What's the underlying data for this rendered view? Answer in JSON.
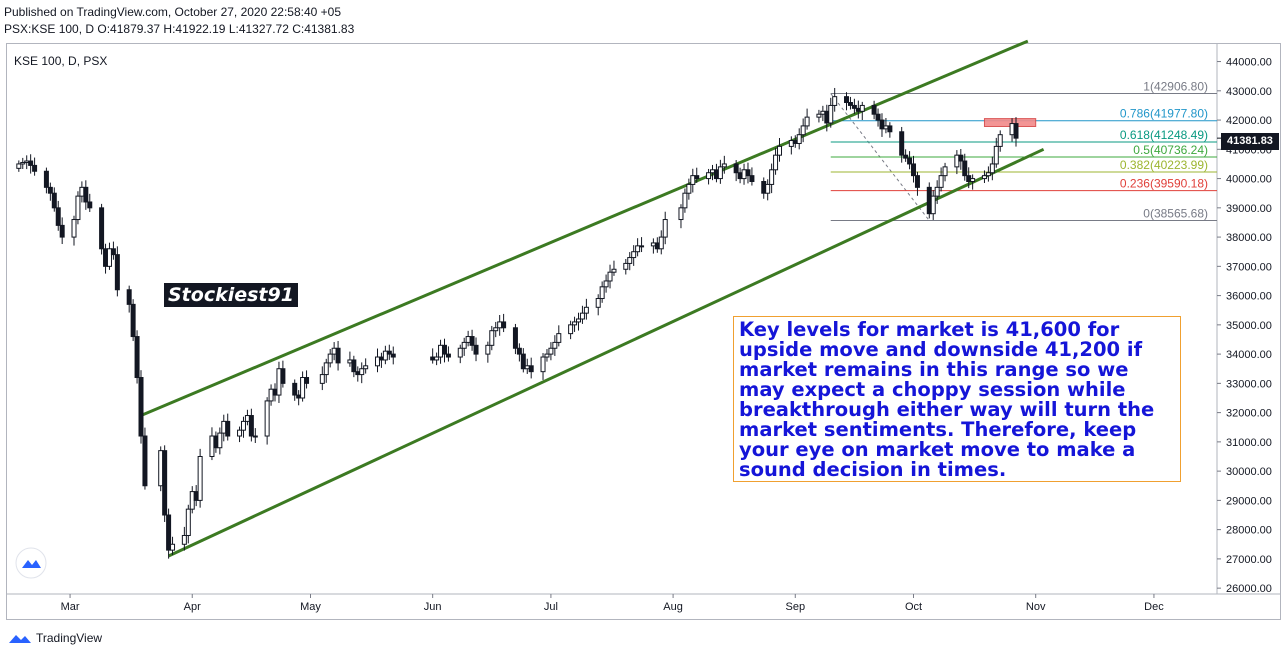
{
  "header": {
    "published_line": "Published on TradingView.com, October 27, 2020 22:58:40 +05",
    "ohlc_line": "PSX:KSE 100, D  O:41879.37 H:41922.19 L:41327.72 C:41381.83"
  },
  "footer": {
    "brand": "TradingView"
  },
  "watermark": "Stockiest91",
  "annotation": "Key levels for market is 41,600 for upside move and downside 41,200 if market remains in this range so we may expect a choppy session while breakthrough either way will turn the market sentiments. Therefore, keep your eye on market move to make a sound decision in times.",
  "last_price_label": "41381.83",
  "chart_data": {
    "type": "candlestick",
    "title": "KSE 100, D, PSX",
    "symbol": "PSX:KSE 100",
    "interval": "D",
    "ylim": [
      25800,
      44600
    ],
    "y_ticks": [
      26000,
      27000,
      28000,
      29000,
      30000,
      31000,
      32000,
      33000,
      34000,
      35000,
      36000,
      37000,
      38000,
      39000,
      40000,
      41000,
      42000,
      43000,
      44000
    ],
    "y_tick_labels": [
      "26000.00",
      "27000.00",
      "28000.00",
      "29000.00",
      "30000.00",
      "31000.00",
      "32000.00",
      "33000.00",
      "34000.00",
      "35000.00",
      "36000.00",
      "37000.00",
      "38000.00",
      "39000.00",
      "40000.00",
      "41000.00",
      "42000.00",
      "43000.00",
      "44000.00"
    ],
    "x_ticks": [
      {
        "label": "Mar",
        "date": "2020-03-01"
      },
      {
        "label": "Apr",
        "date": "2020-04-01"
      },
      {
        "label": "May",
        "date": "2020-05-01"
      },
      {
        "label": "Jun",
        "date": "2020-06-01"
      },
      {
        "label": "Jul",
        "date": "2020-07-01"
      },
      {
        "label": "Aug",
        "date": "2020-08-01"
      },
      {
        "label": "Sep",
        "date": "2020-09-01"
      },
      {
        "label": "Oct",
        "date": "2020-10-01"
      },
      {
        "label": "Nov",
        "date": "2020-11-01"
      },
      {
        "label": "Dec",
        "date": "2020-12-01"
      }
    ],
    "close_series": [
      [
        "2020-02-17",
        40500
      ],
      [
        "2020-02-18",
        40550
      ],
      [
        "2020-02-19",
        40600
      ],
      [
        "2020-02-20",
        40450
      ],
      [
        "2020-02-21",
        40250
      ],
      [
        "2020-02-24",
        39700
      ],
      [
        "2020-02-25",
        39500
      ],
      [
        "2020-02-26",
        39000
      ],
      [
        "2020-02-27",
        38400
      ],
      [
        "2020-02-28",
        38000
      ],
      [
        "2020-03-02",
        38600
      ],
      [
        "2020-03-03",
        39400
      ],
      [
        "2020-03-04",
        39700
      ],
      [
        "2020-03-05",
        39200
      ],
      [
        "2020-03-06",
        39000
      ],
      [
        "2020-03-09",
        37600
      ],
      [
        "2020-03-10",
        37000
      ],
      [
        "2020-03-11",
        37600
      ],
      [
        "2020-03-12",
        37400
      ],
      [
        "2020-03-13",
        36200
      ],
      [
        "2020-03-16",
        35700
      ],
      [
        "2020-03-17",
        34600
      ],
      [
        "2020-03-18",
        33200
      ],
      [
        "2020-03-19",
        31200
      ],
      [
        "2020-03-20",
        29500
      ],
      [
        "2020-03-24",
        30700
      ],
      [
        "2020-03-25",
        28500
      ],
      [
        "2020-03-26",
        27300
      ],
      [
        "2020-03-27",
        27500
      ],
      [
        "2020-03-30",
        27800
      ],
      [
        "2020-03-31",
        28700
      ],
      [
        "2020-04-01",
        29300
      ],
      [
        "2020-04-02",
        29000
      ],
      [
        "2020-04-03",
        30500
      ],
      [
        "2020-04-06",
        31200
      ],
      [
        "2020-04-07",
        30800
      ],
      [
        "2020-04-08",
        31300
      ],
      [
        "2020-04-09",
        31700
      ],
      [
        "2020-04-10",
        31200
      ],
      [
        "2020-04-13",
        31400
      ],
      [
        "2020-04-14",
        31700
      ],
      [
        "2020-04-15",
        31900
      ],
      [
        "2020-04-16",
        31200
      ],
      [
        "2020-04-17",
        31200
      ],
      [
        "2020-04-20",
        32400
      ],
      [
        "2020-04-21",
        32800
      ],
      [
        "2020-04-22",
        32600
      ],
      [
        "2020-04-23",
        33500
      ],
      [
        "2020-04-24",
        33000
      ],
      [
        "2020-04-27",
        32600
      ],
      [
        "2020-04-28",
        32500
      ],
      [
        "2020-04-29",
        33200
      ],
      [
        "2020-04-30",
        33000
      ],
      [
        "2020-05-04",
        33300
      ],
      [
        "2020-05-05",
        33700
      ],
      [
        "2020-05-06",
        34000
      ],
      [
        "2020-05-07",
        34200
      ],
      [
        "2020-05-08",
        33700
      ],
      [
        "2020-05-11",
        33800
      ],
      [
        "2020-05-12",
        33400
      ],
      [
        "2020-05-13",
        33300
      ],
      [
        "2020-05-14",
        33500
      ],
      [
        "2020-05-15",
        33600
      ],
      [
        "2020-05-18",
        33900
      ],
      [
        "2020-05-19",
        33800
      ],
      [
        "2020-05-20",
        34100
      ],
      [
        "2020-05-21",
        34000
      ],
      [
        "2020-05-22",
        33900
      ],
      [
        "2020-06-01",
        33800
      ],
      [
        "2020-06-02",
        33900
      ],
      [
        "2020-06-03",
        34300
      ],
      [
        "2020-06-04",
        34000
      ],
      [
        "2020-06-05",
        33900
      ],
      [
        "2020-06-08",
        34200
      ],
      [
        "2020-06-09",
        34400
      ],
      [
        "2020-06-10",
        34600
      ],
      [
        "2020-06-11",
        34300
      ],
      [
        "2020-06-12",
        34000
      ],
      [
        "2020-06-15",
        34300
      ],
      [
        "2020-06-16",
        34800
      ],
      [
        "2020-06-17",
        34900
      ],
      [
        "2020-06-18",
        35100
      ],
      [
        "2020-06-19",
        34900
      ],
      [
        "2020-06-22",
        34200
      ],
      [
        "2020-06-23",
        34000
      ],
      [
        "2020-06-24",
        33500
      ],
      [
        "2020-06-25",
        33600
      ],
      [
        "2020-06-26",
        33400
      ],
      [
        "2020-06-29",
        33900
      ],
      [
        "2020-06-30",
        34000
      ],
      [
        "2020-07-01",
        34200
      ],
      [
        "2020-07-02",
        34400
      ],
      [
        "2020-07-03",
        34700
      ],
      [
        "2020-07-06",
        35000
      ],
      [
        "2020-07-07",
        35100
      ],
      [
        "2020-07-08",
        35200
      ],
      [
        "2020-07-09",
        35400
      ],
      [
        "2020-07-10",
        35600
      ],
      [
        "2020-07-13",
        35900
      ],
      [
        "2020-07-14",
        36300
      ],
      [
        "2020-07-15",
        36500
      ],
      [
        "2020-07-16",
        36800
      ],
      [
        "2020-07-17",
        36900
      ],
      [
        "2020-07-20",
        37100
      ],
      [
        "2020-07-21",
        37300
      ],
      [
        "2020-07-22",
        37500
      ],
      [
        "2020-07-23",
        37700
      ],
      [
        "2020-07-24",
        37700
      ],
      [
        "2020-07-27",
        37800
      ],
      [
        "2020-07-28",
        37600
      ],
      [
        "2020-07-29",
        38000
      ],
      [
        "2020-07-30",
        38600
      ],
      [
        "2020-08-03",
        39000
      ],
      [
        "2020-08-04",
        39500
      ],
      [
        "2020-08-05",
        39800
      ],
      [
        "2020-08-06",
        40100
      ],
      [
        "2020-08-07",
        40000
      ],
      [
        "2020-08-10",
        40200
      ],
      [
        "2020-08-11",
        40300
      ],
      [
        "2020-08-12",
        40000
      ],
      [
        "2020-08-13",
        40400
      ],
      [
        "2020-08-14",
        40500
      ],
      [
        "2020-08-17",
        40200
      ],
      [
        "2020-08-18",
        40000
      ],
      [
        "2020-08-19",
        40300
      ],
      [
        "2020-08-20",
        40100
      ],
      [
        "2020-08-21",
        39900
      ],
      [
        "2020-08-24",
        39500
      ],
      [
        "2020-08-25",
        39800
      ],
      [
        "2020-08-26",
        40300
      ],
      [
        "2020-08-27",
        40800
      ],
      [
        "2020-08-28",
        41100
      ],
      [
        "2020-08-31",
        41300
      ],
      [
        "2020-09-01",
        41200
      ],
      [
        "2020-09-02",
        41500
      ],
      [
        "2020-09-03",
        41800
      ],
      [
        "2020-09-04",
        42100
      ],
      [
        "2020-09-07",
        42200
      ],
      [
        "2020-09-08",
        42300
      ],
      [
        "2020-09-09",
        41900
      ],
      [
        "2020-09-10",
        42500
      ],
      [
        "2020-09-11",
        42800
      ],
      [
        "2020-09-14",
        42600
      ],
      [
        "2020-09-15",
        42500
      ],
      [
        "2020-09-16",
        42400
      ],
      [
        "2020-09-17",
        42300
      ],
      [
        "2020-09-18",
        42500
      ],
      [
        "2020-09-21",
        42200
      ],
      [
        "2020-09-22",
        42000
      ],
      [
        "2020-09-23",
        41700
      ],
      [
        "2020-09-24",
        41800
      ],
      [
        "2020-09-25",
        41600
      ],
      [
        "2020-09-28",
        40800
      ],
      [
        "2020-09-29",
        40700
      ],
      [
        "2020-09-30",
        40500
      ],
      [
        "2020-10-01",
        40100
      ],
      [
        "2020-10-02",
        39700
      ],
      [
        "2020-10-05",
        38800
      ],
      [
        "2020-10-06",
        39400
      ],
      [
        "2020-10-07",
        39700
      ],
      [
        "2020-10-08",
        40100
      ],
      [
        "2020-10-09",
        40400
      ],
      [
        "2020-10-12",
        40800
      ],
      [
        "2020-10-13",
        40600
      ],
      [
        "2020-10-14",
        40100
      ],
      [
        "2020-10-15",
        39900
      ],
      [
        "2020-10-16",
        40000
      ],
      [
        "2020-10-19",
        40100
      ],
      [
        "2020-10-20",
        40200
      ],
      [
        "2020-10-21",
        40500
      ],
      [
        "2020-10-22",
        41100
      ],
      [
        "2020-10-23",
        41500
      ],
      [
        "2020-10-26",
        41880
      ],
      [
        "2020-10-27",
        41382
      ]
    ],
    "fib_levels": [
      {
        "label": "1(42906.80)",
        "value": 42906.8,
        "color": "#787b86"
      },
      {
        "label": "0.786(41977.80)",
        "value": 41977.8,
        "color": "#2196c9"
      },
      {
        "label": "0.618(41248.49)",
        "value": 41248.49,
        "color": "#089981"
      },
      {
        "label": "0.5(40736.24)",
        "value": 40736.24,
        "color": "#3ea83e"
      },
      {
        "label": "0.382(40223.99)",
        "value": 40223.99,
        "color": "#9cb530"
      },
      {
        "label": "0.236(39590.18)",
        "value": 39590.18,
        "color": "#e0403a"
      },
      {
        "label": "0(38565.68)",
        "value": 38565.68,
        "color": "#787b86"
      }
    ],
    "channel_lines": [
      {
        "from": [
          "2020-03-19",
          31900
        ],
        "to": [
          "2020-10-30",
          44700
        ]
      },
      {
        "from": [
          "2020-03-26",
          27100
        ],
        "to": [
          "2020-11-03",
          41000
        ]
      }
    ],
    "colors": {
      "channel": "#3c7a22",
      "box": "#f0a030",
      "text": "#1515d8",
      "highlight": "#f28a8a"
    }
  }
}
